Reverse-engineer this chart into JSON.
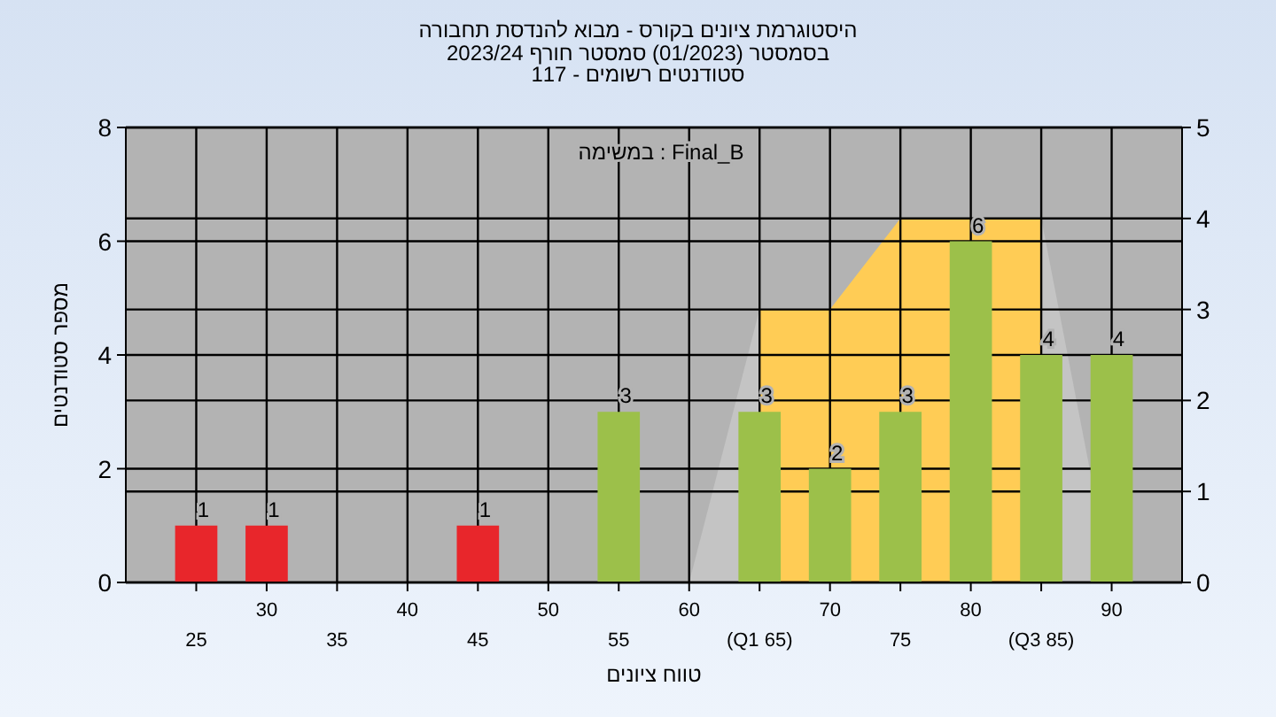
{
  "chart_data": {
    "type": "bar",
    "title": "היסטוגרמת ציונים בקורס - מבוא להנדסת תחבורה",
    "subtitle": "בסמסטר  (01/2023)  סמסטר חורף 2023/24\nסטודנטים רשומים - 117",
    "xlabel": "טווח ציונים",
    "ylabel": "מספר סטודנטים",
    "annotations": [
      "במשימה : Final_B"
    ],
    "series": [
      {
        "type": "area",
        "axis": "y2",
        "color": "#c4c4c4",
        "x": [
          60,
          65
        ],
        "values": [
          0,
          3
        ]
      },
      {
        "type": "area",
        "axis": "y2",
        "color": "#c4c4c4",
        "x": [
          85,
          90
        ],
        "values": [
          4,
          0
        ]
      },
      {
        "type": "area",
        "axis": "y2",
        "color": "#ffcc55",
        "x": [
          65,
          70,
          75,
          80,
          85
        ],
        "values": [
          3,
          3,
          4,
          4,
          4
        ]
      },
      {
        "x": [
          25,
          30,
          45,
          55,
          65,
          70,
          75,
          80,
          85,
          90
        ],
        "values": [
          1,
          1,
          1,
          3,
          3,
          2,
          3,
          6,
          4,
          4
        ],
        "value_labels": [
          "1",
          "1",
          "1",
          "3",
          "3",
          "2",
          "3",
          "6",
          "4",
          "4"
        ],
        "colors": [
          "#e8262b",
          "#e8262b",
          "#e8262b",
          "#9cc04a",
          "#9cc04a",
          "#9cc04a",
          "#9cc04a",
          "#9cc04a",
          "#9cc04a",
          "#9cc04a"
        ]
      }
    ],
    "xlim": [
      20,
      95
    ],
    "xticks": [
      30,
      40,
      50,
      60,
      70,
      80,
      90
    ],
    "x2lim": [
      20,
      95
    ],
    "x2ticks": [
      25,
      35,
      45,
      55,
      {
        "value": 65,
        "label": "(Q1 65)"
      },
      75,
      {
        "value": 85,
        "label": "(Q3 85)"
      }
    ],
    "ylim": [
      0,
      8
    ],
    "yticks": [
      0,
      2,
      4,
      6,
      8
    ],
    "y2lim": [
      0,
      5
    ],
    "y2ticks": [
      0,
      1,
      2,
      3,
      4,
      5
    ],
    "grid": true
  }
}
